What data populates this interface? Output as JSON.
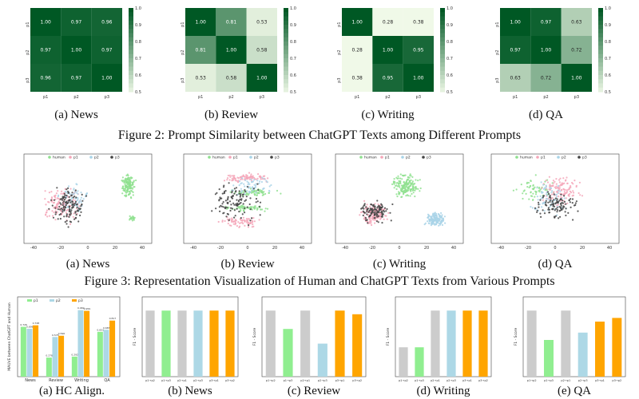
{
  "figure2": {
    "caption": "Figure 2: Prompt Similarity between ChatGPT Texts among Different Prompts",
    "colorbar_ticks": [
      "1.0",
      "0.9",
      "0.8",
      "0.7",
      "0.6",
      "0.5"
    ],
    "chart_data": [
      {
        "type": "heatmap",
        "label": "(a) News",
        "rows": [
          "p1",
          "p2",
          "p3"
        ],
        "cols": [
          "p1",
          "p2",
          "p3"
        ],
        "values": [
          [
            1.0,
            0.97,
            0.96
          ],
          [
            0.97,
            1.0,
            0.97
          ],
          [
            0.96,
            0.97,
            1.0
          ]
        ]
      },
      {
        "type": "heatmap",
        "label": "(b) Review",
        "rows": [
          "p1",
          "p2",
          "p3"
        ],
        "cols": [
          "p1",
          "p2",
          "p3"
        ],
        "values": [
          [
            1.0,
            0.81,
            0.53
          ],
          [
            0.81,
            1.0,
            0.58
          ],
          [
            0.53,
            0.58,
            1.0
          ]
        ]
      },
      {
        "type": "heatmap",
        "label": "(c) Writing",
        "rows": [
          "p1",
          "p2",
          "p3"
        ],
        "cols": [
          "p1",
          "p2",
          "p3"
        ],
        "values": [
          [
            1.0,
            0.28,
            0.38
          ],
          [
            0.28,
            1.0,
            0.95
          ],
          [
            0.38,
            0.95,
            1.0
          ]
        ]
      },
      {
        "type": "heatmap",
        "label": "(d) QA",
        "rows": [
          "p1",
          "p2",
          "p3"
        ],
        "cols": [
          "p1",
          "p2",
          "p3"
        ],
        "values": [
          [
            1.0,
            0.97,
            0.63
          ],
          [
            0.97,
            1.0,
            0.72
          ],
          [
            0.63,
            0.72,
            1.0
          ]
        ]
      }
    ]
  },
  "figure3": {
    "caption": "Figure 3: Representation Visualization of Human and ChatGPT Texts from Various Prompts",
    "legend": [
      "human",
      "p1",
      "p2",
      "p3"
    ],
    "colors": {
      "human": "#8fe08f",
      "p1": "#f4a6b8",
      "p2": "#a9d4e8",
      "p3": "#444444"
    },
    "panels": [
      "(a) News",
      "(b) Review",
      "(c) Writing",
      "(d) QA"
    ],
    "x_ticks": [
      "-40",
      "-20",
      "0",
      "20",
      "40"
    ]
  },
  "figure4": {
    "hc": {
      "label": "(a) HC Align.",
      "ylabel": "MAUVE between ChatGPT and Human",
      "categories": [
        "News",
        "Review",
        "Writing",
        "QA"
      ],
      "legend": [
        "p1",
        "p2",
        "p3"
      ],
      "colors": {
        "p1": "#90ee90",
        "p2": "#add8e6",
        "p3": "#ffa500"
      },
      "chart_data": {
        "type": "bar",
        "categories": [
          "News",
          "Review",
          "Writing",
          "QA"
        ],
        "series": [
          {
            "name": "p1",
            "values": [
              0.726,
              0.278,
              0.292,
              0.653
            ]
          },
          {
            "name": "p2",
            "values": [
              0.698,
              0.578,
              0.969,
              0.683
            ]
          },
          {
            "name": "p3",
            "values": [
              0.748,
              0.596,
              0.959,
              0.817
            ]
          }
        ],
        "ylim": [
          0,
          1
        ]
      }
    },
    "f1_panels": [
      {
        "label": "(b) News",
        "values": [
          0.98,
          0.98,
          0.98,
          0.98,
          0.98,
          0.98
        ]
      },
      {
        "label": "(c) Review",
        "values": [
          0.98,
          0.93,
          0.98,
          0.89,
          0.98,
          0.97
        ]
      },
      {
        "label": "(d) Writing",
        "values": [
          0.88,
          0.88,
          0.98,
          0.98,
          0.98,
          0.98
        ]
      },
      {
        "label": "(e) QA",
        "values": [
          0.98,
          0.9,
          0.98,
          0.92,
          0.95,
          0.96
        ]
      }
    ],
    "f1_ylabel": "F1 - Score",
    "f1_xlabels": [
      "p1→p2",
      "p1→p3",
      "p2→p1",
      "p2→p3",
      "p3→p1",
      "p3→p2"
    ],
    "f1_colors": [
      "#cccccc",
      "#90ee90",
      "#cccccc",
      "#add8e6",
      "#ffa500",
      "#ffa500"
    ]
  }
}
